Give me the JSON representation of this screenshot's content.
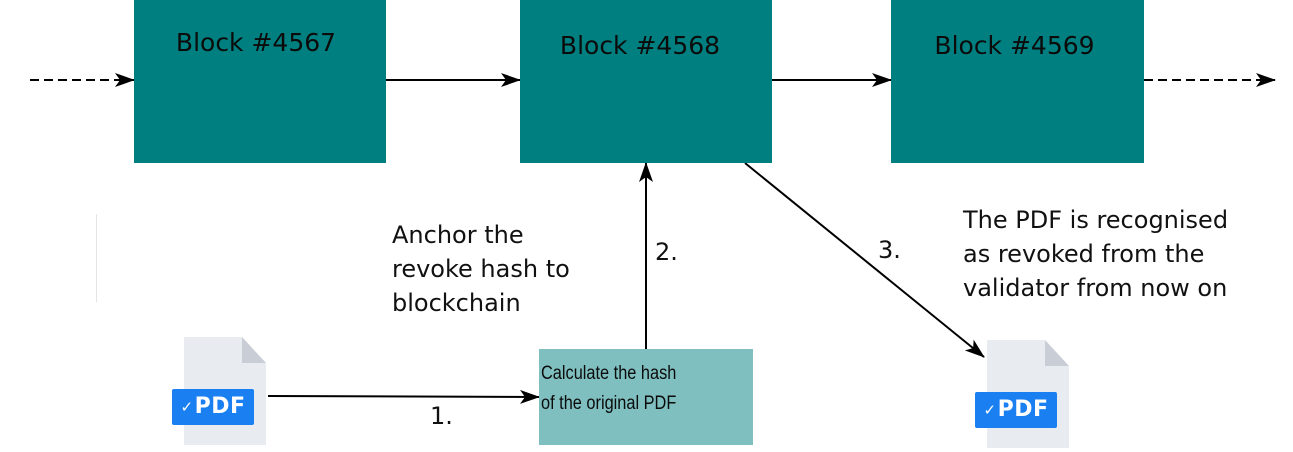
{
  "blocks": [
    {
      "label": "Block #4567"
    },
    {
      "label": "Block #4568"
    },
    {
      "label": "Block #4569"
    }
  ],
  "calc_box": {
    "line1": "Calculate the hash",
    "line2": "of the original PDF"
  },
  "annotations": {
    "anchor": [
      "Anchor the",
      "revoke hash to",
      "blockchain"
    ],
    "revoked": [
      "The PDF is recognised",
      "as revoked from the",
      "validator from now on"
    ]
  },
  "steps": {
    "one": "1.",
    "two": "2.",
    "three": "3."
  },
  "pdf_icon": {
    "label": "PDF",
    "icon": "pdf-file-icon",
    "check_icon": "check-badge-icon"
  },
  "colors": {
    "block": "#007f80",
    "calc_box": "#7fbfbf",
    "pdf_tag": "#1a7ff0",
    "page": "#e8ebef"
  }
}
